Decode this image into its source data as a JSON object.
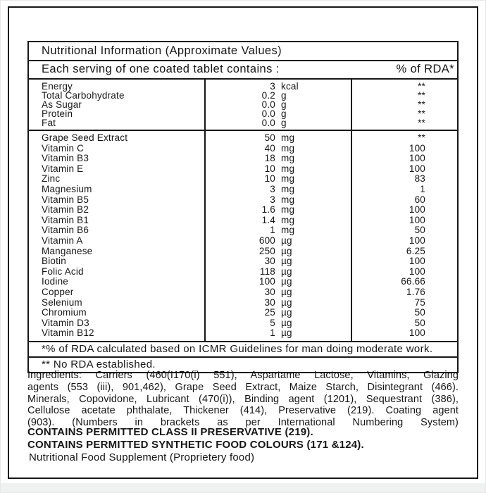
{
  "colors": {
    "text": "#161616",
    "border": "#161616",
    "background": "#ffffff",
    "page_edge": "#f0f2f2"
  },
  "table": {
    "title": "Nutritional Information (Approximate Values)",
    "serving_header": "Each serving of one coated tablet contains :",
    "rda_header": "% of RDA*",
    "sections": [
      {
        "rows": [
          {
            "name": "Energy",
            "value": "3",
            "unit": "kcal",
            "rda": "**"
          },
          {
            "name": "Total Carbohydrate",
            "value": "0.2",
            "unit": "g",
            "rda": "**"
          },
          {
            "name": "As Sugar",
            "value": "0.0",
            "unit": "g",
            "rda": "**"
          },
          {
            "name": "Protein",
            "value": "0.0",
            "unit": "g",
            "rda": "**"
          },
          {
            "name": "Fat",
            "value": "0.0",
            "unit": "g",
            "rda": "**"
          }
        ]
      },
      {
        "rows": [
          {
            "name": "Grape Seed Extract",
            "value": "50",
            "unit": "mg",
            "rda": "**"
          },
          {
            "name": "Vitamin C",
            "value": "40",
            "unit": "mg",
            "rda": "100"
          },
          {
            "name": "Vitamin B3",
            "value": "18",
            "unit": "mg",
            "rda": "100"
          },
          {
            "name": "Vitamin E",
            "value": "10",
            "unit": "mg",
            "rda": "100"
          },
          {
            "name": "Zinc",
            "value": "10",
            "unit": "mg",
            "rda": "83"
          },
          {
            "name": "Magnesium",
            "value": "3",
            "unit": "mg",
            "rda": "1"
          },
          {
            "name": "Vitamin B5",
            "value": "3",
            "unit": "mg",
            "rda": "60"
          },
          {
            "name": "Vitamin B2",
            "value": "1.6",
            "unit": "mg",
            "rda": "100"
          },
          {
            "name": "Vitamin B1",
            "value": "1.4",
            "unit": "mg",
            "rda": "100"
          },
          {
            "name": "Vitamin B6",
            "value": "1",
            "unit": "mg",
            "rda": "50"
          },
          {
            "name": "Vitamin A",
            "value": "600",
            "unit": "µg",
            "rda": "100"
          },
          {
            "name": "Manganese",
            "value": "250",
            "unit": "µg",
            "rda": "6.25"
          },
          {
            "name": "Biotin",
            "value": "30",
            "unit": "µg",
            "rda": "100"
          },
          {
            "name": "Folic Acid",
            "value": "118",
            "unit": "µg",
            "rda": "100"
          },
          {
            "name": "Iodine",
            "value": "100",
            "unit": "µg",
            "rda": "66.66"
          },
          {
            "name": "Copper",
            "value": "30",
            "unit": "µg",
            "rda": "1.76"
          },
          {
            "name": "Selenium",
            "value": "30",
            "unit": "µg",
            "rda": "75"
          },
          {
            "name": "Chromium",
            "value": "25",
            "unit": "µg",
            "rda": "50"
          },
          {
            "name": "Vitamin D3",
            "value": "5",
            "unit": "µg",
            "rda": "50"
          },
          {
            "name": "Vitamin B12",
            "value": "1",
            "unit": "µg",
            "rda": "100"
          }
        ]
      }
    ],
    "footnotes": [
      "*% of RDA calculated based on ICMR Guidelines for man doing moderate work.",
      "** No RDA established."
    ]
  },
  "ingredients_lines": [
    "Ingredients: Carriers (460(I170(i) 551), Aspartame Lactose, Vitamins, Glazing",
    "agents (553 (iii), 901,462), Grape Seed Extract, Maize Starch, Disintegrant (466).",
    "Minerals, Copovidone, Lubricant (470(i)), Binding agent (1201), Sequestrant (386),",
    "Cellulose acetate phthalate, Thickener (414), Preservative (219). Coating agent",
    "(903). (Numbers in brackets as per International Numbering System)"
  ],
  "claims": {
    "preservative": "CONTAINS PERMITTED CLASS II PRESERVATIVE (219).",
    "colours": "CONTAINS PERMITTED SYNTHETIC FOOD COLOURS (171 &124)."
  },
  "supplement_note": "Nutritional Food Supplement (Proprietery food)"
}
